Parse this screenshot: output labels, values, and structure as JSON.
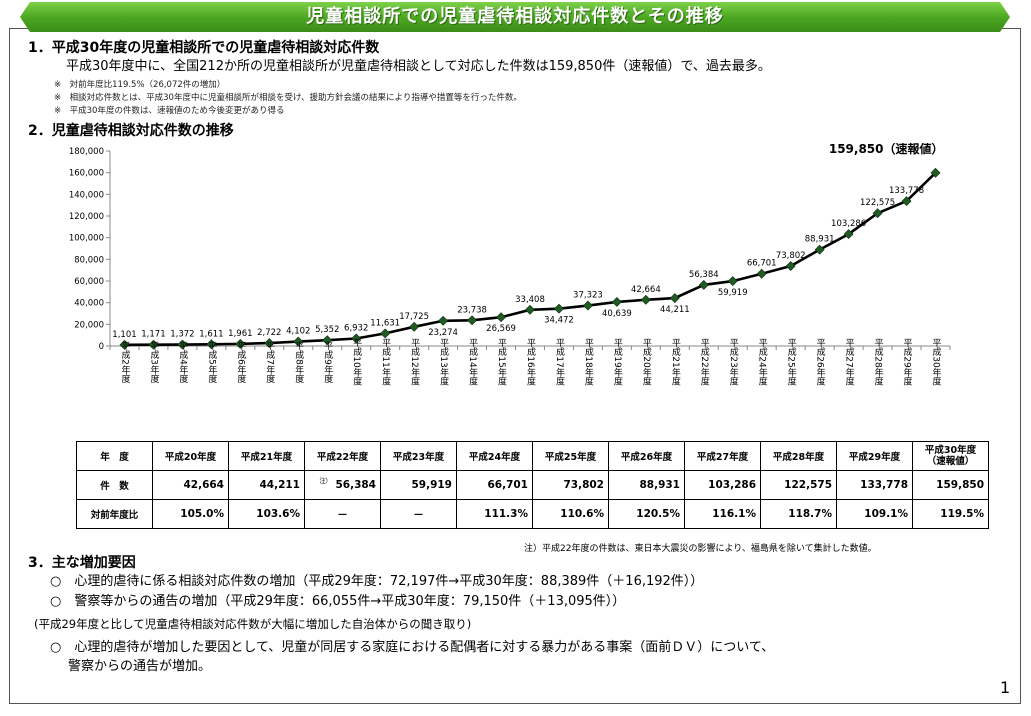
{
  "banner": {
    "title": "児童相談所での児童虐待相談対応件数とその推移",
    "color": "#4da822"
  },
  "section1": {
    "heading": "1．平成30年度の児童相談所での児童虐待相談対応件数",
    "body": "平成30年度中に、全国212か所の児童相談所が児童虐待相談として対応した件数は159,850件（速報値）で、過去最多。",
    "notes": [
      "※　対前年度比119.5%（26,072件の増加）",
      "※　相談対応件数とは、平成30年度中に児童相談所が相談を受け、援助方針会議の結果により指導や措置等を行った件数。",
      "※　平成30年度の件数は、速報値のため今後変更があり得る"
    ]
  },
  "section2": {
    "heading": "2．児童虐待相談対応件数の推移"
  },
  "chart_data": {
    "type": "line",
    "categories": [
      "平成2年度",
      "平成3年度",
      "平成4年度",
      "平成5年度",
      "平成6年度",
      "平成7年度",
      "平成8年度",
      "平成9年度",
      "平成10年度",
      "平成11年度",
      "平成12年度",
      "平成13年度",
      "平成14年度",
      "平成15年度",
      "平成16年度",
      "平成17年度",
      "平成18年度",
      "平成19年度",
      "平成20年度",
      "平成21年度",
      "平成22年度",
      "平成23年度",
      "平成24年度",
      "平成25年度",
      "平成26年度",
      "平成27年度",
      "平成28年度",
      "平成29年度",
      "平成30年度"
    ],
    "tick_labels": [
      "平成2年度",
      "平成3年度",
      "平成4年度",
      "平成5年度",
      "平成6年度",
      "平成7年度",
      "平成8年度",
      "平成9年度",
      "平成10年度",
      "平成11年度",
      "平成12年度",
      "平成13年度",
      "平成14年度",
      "平成15年度",
      "平成16年度",
      "平成17年度",
      "平成18年度",
      "平成19年度",
      "平成20年度",
      "平成21年度",
      "平成22年度",
      "平成23年度",
      "平成24年度",
      "平成25年度",
      "平成26年度",
      "平成27年度",
      "平成28年度",
      "平成29年度",
      "平成30年度"
    ],
    "values": [
      1101,
      1171,
      1372,
      1611,
      1961,
      2722,
      4102,
      5352,
      6932,
      11631,
      17725,
      23274,
      23738,
      26569,
      33408,
      34472,
      37323,
      40639,
      42664,
      44211,
      56384,
      59919,
      66701,
      73802,
      88931,
      103286,
      122575,
      133778,
      159850
    ],
    "data_labels": [
      "1,101",
      "1,171",
      "1,372",
      "1,611",
      "1,961",
      "2,722",
      "4,102",
      "5,352",
      "6,932",
      "11,631",
      "17,725",
      "23,274",
      "23,738",
      "26,569",
      "33,408",
      "34,472",
      "37,323",
      "40,639",
      "42,664",
      "44,211",
      "56,384",
      "59,919",
      "66,701",
      "73,802",
      "88,931",
      "103,286",
      "122,575",
      "133,778",
      "159,850（速報値）"
    ],
    "label_below": [
      false,
      false,
      false,
      false,
      false,
      false,
      false,
      false,
      false,
      false,
      false,
      true,
      false,
      true,
      false,
      true,
      false,
      true,
      false,
      true,
      false,
      true,
      false,
      false,
      false,
      false,
      false,
      false,
      false
    ],
    "ylim": [
      0,
      180000
    ],
    "yticks": [
      0,
      20000,
      40000,
      60000,
      80000,
      100000,
      120000,
      140000,
      160000,
      180000
    ],
    "ytick_labels": [
      "0",
      "20,000",
      "40,000",
      "60,000",
      "80,000",
      "100,000",
      "120,000",
      "140,000",
      "160,000",
      "180,000"
    ],
    "grid": false,
    "line_color": "#000000",
    "marker_color": "#1f5b22"
  },
  "table": {
    "header_label": "年　度",
    "years": [
      "平成20年度",
      "平成21年度",
      "平成22年度",
      "平成23年度",
      "平成24年度",
      "平成25年度",
      "平成26年度",
      "平成27年度",
      "平成28年度",
      "平成29年度"
    ],
    "last_year": [
      "平成30年度",
      "（速報値）"
    ],
    "count_label": "件　数",
    "counts": [
      "42,664",
      "44,211",
      "56,384",
      "59,919",
      "66,701",
      "73,802",
      "88,931",
      "103,286",
      "122,575",
      "133,778",
      "159,850"
    ],
    "footnote_marker": "注）",
    "ratio_label": "対前年度比",
    "ratios": [
      "105.0%",
      "103.6%",
      "－",
      "－",
      "111.3%",
      "110.6%",
      "120.5%",
      "116.1%",
      "118.7%",
      "109.1%",
      "119.5%"
    ]
  },
  "table_note": "注）平成22年度の件数は、東日本大震災の影響により、福島県を除いて集計した数値。",
  "section3": {
    "heading": "3．主な増加要因",
    "items": [
      "○　心理的虐待に係る相談対応件数の増加（平成29年度：72,197件→平成30年度：88,389件（＋16,192件））",
      "○　警察等からの通告の増加（平成29年度：66,055件→平成30年度：79,150件（＋13,095件））"
    ],
    "subheading": "(平成29年度と比して児童虐待相談対応件数が大幅に増加した自治体からの聞き取り)",
    "sub_item_line1": "○　心理的虐待が増加した要因として、児童が同居する家庭における配偶者に対する暴力がある事案（面前ＤＶ）について、",
    "sub_item_line2": "警察からの通告が増加。"
  },
  "page_number": "1"
}
